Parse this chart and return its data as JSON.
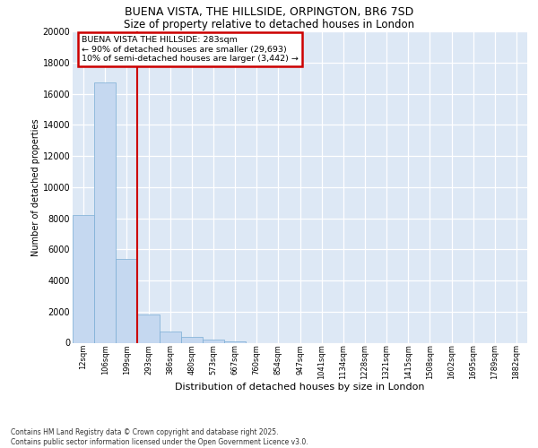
{
  "title_line1": "BUENA VISTA, THE HILLSIDE, ORPINGTON, BR6 7SD",
  "title_line2": "Size of property relative to detached houses in London",
  "xlabel": "Distribution of detached houses by size in London",
  "ylabel": "Number of detached properties",
  "bin_labels": [
    "12sqm",
    "106sqm",
    "199sqm",
    "293sqm",
    "386sqm",
    "480sqm",
    "573sqm",
    "667sqm",
    "760sqm",
    "854sqm",
    "947sqm",
    "1041sqm",
    "1134sqm",
    "1228sqm",
    "1321sqm",
    "1415sqm",
    "1508sqm",
    "1602sqm",
    "1695sqm",
    "1789sqm",
    "1882sqm"
  ],
  "bar_heights": [
    8200,
    16700,
    5400,
    1800,
    700,
    350,
    200,
    100,
    0,
    0,
    0,
    0,
    0,
    0,
    0,
    0,
    0,
    0,
    0,
    0,
    0
  ],
  "bar_color": "#c5d8f0",
  "bar_edge_color": "#7aadd4",
  "vline_pos": 2.5,
  "vline_color": "#cc0000",
  "annotation_text": "BUENA VISTA THE HILLSIDE: 283sqm\n← 90% of detached houses are smaller (29,693)\n10% of semi-detached houses are larger (3,442) →",
  "annotation_box_edgecolor": "#cc0000",
  "ylim": [
    0,
    20000
  ],
  "ytick_vals": [
    0,
    2000,
    4000,
    6000,
    8000,
    10000,
    12000,
    14000,
    16000,
    18000,
    20000
  ],
  "ytick_labels": [
    "0",
    "2000",
    "4000",
    "6000",
    "8000",
    "10000",
    "12000",
    "14000",
    "16000",
    "18000",
    "20000"
  ],
  "footer_line1": "Contains HM Land Registry data © Crown copyright and database right 2025.",
  "footer_line2": "Contains public sector information licensed under the Open Government Licence v3.0.",
  "plot_bgcolor": "#dde8f5",
  "grid_color": "#ffffff",
  "title_fontsize": 9,
  "subtitle_fontsize": 8.5,
  "ylabel_fontsize": 7,
  "xlabel_fontsize": 8,
  "ytick_fontsize": 7,
  "xtick_fontsize": 6
}
